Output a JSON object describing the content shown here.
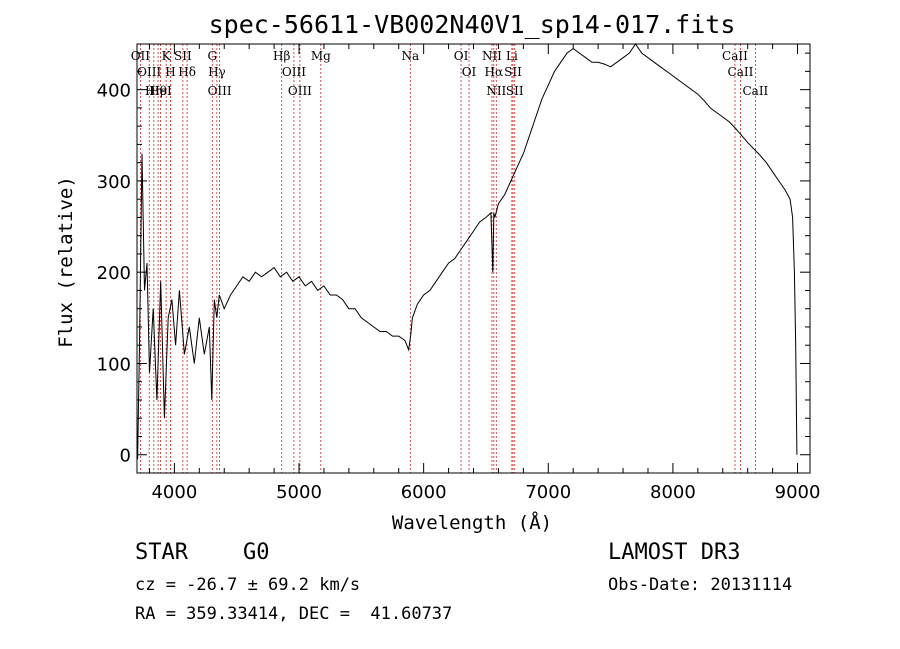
{
  "chart_data": {
    "type": "line",
    "title": "spec-56611-VB002N40V1_sp14-017.fits",
    "xlabel": "Wavelength (Å)",
    "ylabel": "Flux (relative)",
    "xlim": [
      3700,
      9100
    ],
    "ylim": [
      -20,
      450
    ],
    "xticks": [
      4000,
      5000,
      6000,
      7000,
      8000,
      9000
    ],
    "yticks": [
      0,
      100,
      200,
      300,
      400
    ],
    "series": [
      {
        "name": "spectrum",
        "x": [
          3705,
          3720,
          3740,
          3760,
          3780,
          3800,
          3830,
          3860,
          3890,
          3920,
          3950,
          3980,
          4010,
          4040,
          4080,
          4120,
          4160,
          4200,
          4240,
          4280,
          4300,
          4320,
          4340,
          4360,
          4400,
          4450,
          4500,
          4550,
          4600,
          4650,
          4700,
          4750,
          4800,
          4850,
          4900,
          4950,
          5000,
          5050,
          5100,
          5150,
          5200,
          5250,
          5300,
          5350,
          5400,
          5450,
          5500,
          5550,
          5600,
          5650,
          5700,
          5750,
          5800,
          5850,
          5880,
          5895,
          5910,
          5950,
          6000,
          6050,
          6100,
          6150,
          6200,
          6250,
          6300,
          6350,
          6400,
          6450,
          6500,
          6540,
          6555,
          6563,
          6572,
          6600,
          6650,
          6700,
          6750,
          6800,
          6850,
          6900,
          6950,
          7000,
          7050,
          7100,
          7150,
          7200,
          7250,
          7300,
          7350,
          7400,
          7450,
          7500,
          7550,
          7600,
          7650,
          7700,
          7750,
          7800,
          7850,
          7900,
          7950,
          8000,
          8050,
          8100,
          8150,
          8200,
          8250,
          8300,
          8350,
          8400,
          8450,
          8500,
          8550,
          8600,
          8650,
          8700,
          8750,
          8800,
          8850,
          8900,
          8940,
          8960,
          8975,
          8985,
          8995
        ],
        "values": [
          -5,
          120,
          330,
          180,
          210,
          90,
          160,
          60,
          190,
          40,
          150,
          170,
          120,
          180,
          110,
          140,
          100,
          150,
          110,
          140,
          60,
          170,
          150,
          175,
          160,
          175,
          185,
          195,
          190,
          200,
          195,
          200,
          205,
          195,
          200,
          190,
          195,
          185,
          190,
          180,
          185,
          175,
          175,
          170,
          160,
          160,
          150,
          145,
          140,
          135,
          135,
          130,
          130,
          125,
          115,
          130,
          150,
          165,
          175,
          180,
          190,
          200,
          210,
          215,
          225,
          235,
          245,
          255,
          260,
          265,
          200,
          265,
          260,
          275,
          285,
          300,
          315,
          330,
          350,
          370,
          390,
          405,
          420,
          430,
          440,
          445,
          440,
          435,
          430,
          430,
          428,
          425,
          430,
          435,
          440,
          450,
          440,
          435,
          430,
          425,
          420,
          415,
          410,
          405,
          400,
          395,
          388,
          380,
          375,
          370,
          365,
          358,
          350,
          342,
          335,
          328,
          320,
          310,
          300,
          290,
          280,
          260,
          200,
          120,
          0
        ]
      }
    ],
    "emission_lines": [
      {
        "wl": 3727,
        "label": "OII"
      },
      {
        "wl": 3798,
        "label": "OIII"
      },
      {
        "wl": 3835,
        "label": "Hη"
      },
      {
        "wl": 3869,
        "label": "Hθ"
      },
      {
        "wl": 3889,
        "label": "HeI"
      },
      {
        "wl": 3934,
        "label": "K"
      },
      {
        "wl": 3969,
        "label": "H"
      },
      {
        "wl": 4068,
        "label": "SII"
      },
      {
        "wl": 4102,
        "label": "Hδ"
      },
      {
        "wl": 4304,
        "label": "G"
      },
      {
        "wl": 4341,
        "label": "Hγ"
      },
      {
        "wl": 4363,
        "label": "OIII"
      },
      {
        "wl": 4861,
        "label": "Hβ"
      },
      {
        "wl": 4959,
        "label": "OIII"
      },
      {
        "wl": 5007,
        "label": "OIII"
      },
      {
        "wl": 5175,
        "label": "Mg"
      },
      {
        "wl": 5893,
        "label": "Na"
      },
      {
        "wl": 6300,
        "label": "OI"
      },
      {
        "wl": 6364,
        "label": "OI"
      },
      {
        "wl": 6548,
        "label": "NII"
      },
      {
        "wl": 6563,
        "label": "Hα"
      },
      {
        "wl": 6583,
        "label": "NII"
      },
      {
        "wl": 6708,
        "label": "Li"
      },
      {
        "wl": 6717,
        "label": "SII"
      },
      {
        "wl": 6731,
        "label": "SII"
      },
      {
        "wl": 8498,
        "label": "CaII"
      },
      {
        "wl": 8542,
        "label": "CaII"
      },
      {
        "wl": 8662,
        "label": "CaII"
      }
    ]
  },
  "info": {
    "object_class": "STAR",
    "subclass": "G0",
    "survey": "LAMOST DR3",
    "cz": "cz = -26.7 ± 69.2 km/s",
    "obs_date": "Obs-Date: 20131114",
    "coords": "RA = 359.33414, DEC =  41.60737"
  },
  "colors": {
    "spectrum": "#000000",
    "line_marker": "#cc2222",
    "axes": "#000000"
  }
}
